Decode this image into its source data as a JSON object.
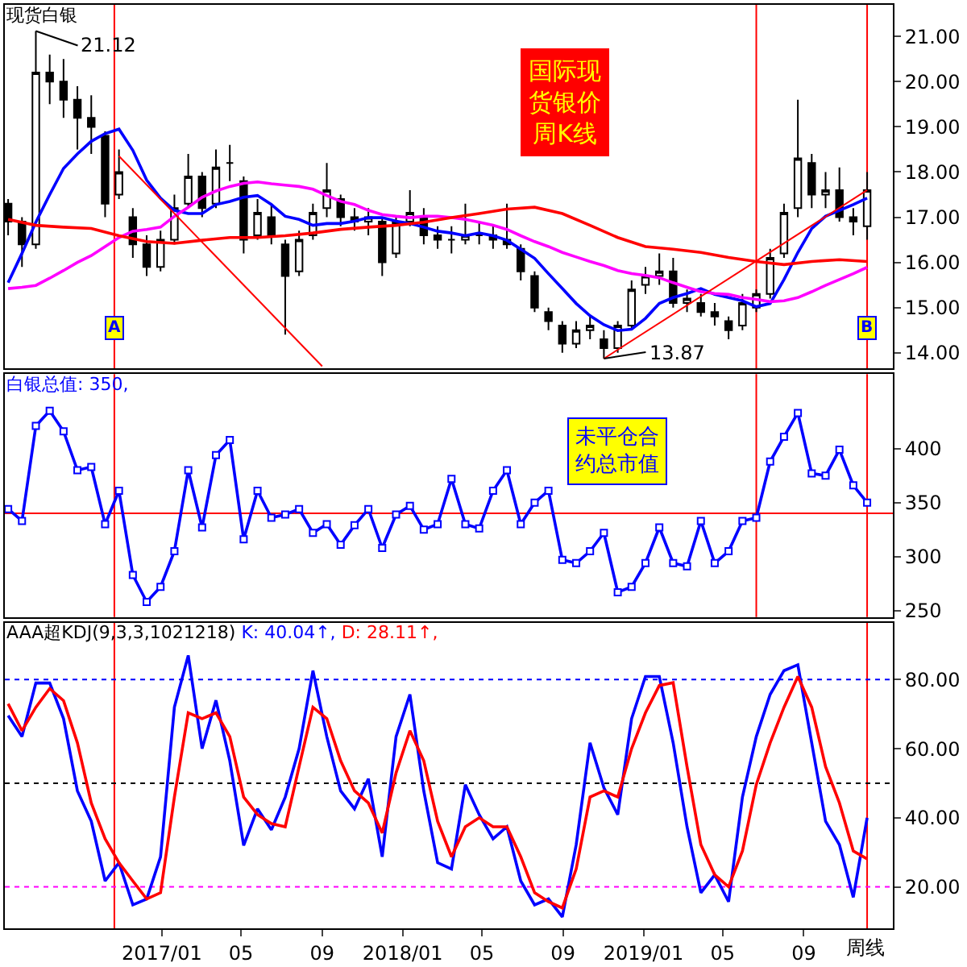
{
  "chart_data": [
    {
      "type": "candlestick",
      "title": "现货白银",
      "x": [
        "2016-05-13",
        "2016-06-03",
        "2016-06-24",
        "2016-07-15",
        "2016-08-05",
        "2016-08-26",
        "2016-09-16",
        "2016-10-07",
        "2016-10-28",
        "2016-11-18",
        "2016-12-09",
        "2016-12-30",
        "2017-01-20",
        "2017-02-10",
        "2017-03-03",
        "2017-03-24",
        "2017-04-14",
        "2017-05-05",
        "2017-05-26",
        "2017-06-16",
        "2017-07-07",
        "2017-07-28",
        "2017-08-18",
        "2017-09-08",
        "2017-09-29",
        "2017-10-20",
        "2017-11-10",
        "2017-12-01",
        "2017-12-22",
        "2018-01-12",
        "2018-02-02",
        "2018-02-23",
        "2018-03-16",
        "2018-04-06",
        "2018-04-27",
        "2018-05-18",
        "2018-06-08",
        "2018-06-29",
        "2018-07-20",
        "2018-08-10",
        "2018-08-31",
        "2018-09-21",
        "2018-10-12",
        "2018-11-02",
        "2018-11-23",
        "2018-12-14",
        "2019-01-04",
        "2019-01-25",
        "2019-02-15",
        "2019-03-08",
        "2019-03-29",
        "2019-04-19",
        "2019-05-10",
        "2019-05-31",
        "2019-06-21",
        "2019-07-12",
        "2019-08-02",
        "2019-08-23",
        "2019-09-13",
        "2019-10-04",
        "2019-10-25",
        "2019-11-15",
        "2019-12-06"
      ],
      "ohlc": [
        [
          17.3,
          17.4,
          16.6,
          16.9
        ],
        [
          16.9,
          17.0,
          15.9,
          16.4
        ],
        [
          16.4,
          21.12,
          16.3,
          20.2
        ],
        [
          20.2,
          20.6,
          19.5,
          20.0
        ],
        [
          20.0,
          20.5,
          19.2,
          19.6
        ],
        [
          19.6,
          19.9,
          18.5,
          19.2
        ],
        [
          19.2,
          19.7,
          18.4,
          19.0
        ],
        [
          18.8,
          18.9,
          17.0,
          17.3
        ],
        [
          17.5,
          18.5,
          17.4,
          18.0
        ],
        [
          17.0,
          17.2,
          16.1,
          16.4
        ],
        [
          16.4,
          16.6,
          15.7,
          15.9
        ],
        [
          15.9,
          16.7,
          15.8,
          16.5
        ],
        [
          16.5,
          17.5,
          16.4,
          17.2
        ],
        [
          17.3,
          18.4,
          17.2,
          17.9
        ],
        [
          17.9,
          18.0,
          17.0,
          17.2
        ],
        [
          17.3,
          18.5,
          17.2,
          18.1
        ],
        [
          18.2,
          18.6,
          17.8,
          18.2
        ],
        [
          17.8,
          17.9,
          16.2,
          16.5
        ],
        [
          16.6,
          17.4,
          16.5,
          17.1
        ],
        [
          17.0,
          17.3,
          16.4,
          16.6
        ],
        [
          16.4,
          16.5,
          14.4,
          15.7
        ],
        [
          15.8,
          16.7,
          15.7,
          16.5
        ],
        [
          16.6,
          17.3,
          16.5,
          17.1
        ],
        [
          17.2,
          18.2,
          17.0,
          17.6
        ],
        [
          17.4,
          17.5,
          16.8,
          17.0
        ],
        [
          17.0,
          17.2,
          16.7,
          16.9
        ],
        [
          16.9,
          17.2,
          16.6,
          17.0
        ],
        [
          16.9,
          17.0,
          15.7,
          16.0
        ],
        [
          16.2,
          17.0,
          16.1,
          16.9
        ],
        [
          16.9,
          17.6,
          16.8,
          17.1
        ],
        [
          17.0,
          17.2,
          16.4,
          16.6
        ],
        [
          16.6,
          16.8,
          16.3,
          16.5
        ],
        [
          16.5,
          16.8,
          16.2,
          16.5
        ],
        [
          16.5,
          17.3,
          16.4,
          16.6
        ],
        [
          16.6,
          16.9,
          16.4,
          16.6
        ],
        [
          16.6,
          16.8,
          16.3,
          16.5
        ],
        [
          16.5,
          17.3,
          16.3,
          16.4
        ],
        [
          16.3,
          16.4,
          15.6,
          15.8
        ],
        [
          15.7,
          15.8,
          14.9,
          15.0
        ],
        [
          14.9,
          15.0,
          14.5,
          14.7
        ],
        [
          14.6,
          14.7,
          14.0,
          14.2
        ],
        [
          14.2,
          14.7,
          14.1,
          14.5
        ],
        [
          14.5,
          14.8,
          14.3,
          14.6
        ],
        [
          14.3,
          14.5,
          13.87,
          14.1
        ],
        [
          14.1,
          14.7,
          14.0,
          14.6
        ],
        [
          14.6,
          15.6,
          14.5,
          15.4
        ],
        [
          15.5,
          15.9,
          15.3,
          15.7
        ],
        [
          15.7,
          16.2,
          15.5,
          15.8
        ],
        [
          15.8,
          16.1,
          15.0,
          15.1
        ],
        [
          15.1,
          15.4,
          14.9,
          15.2
        ],
        [
          15.1,
          15.3,
          14.8,
          14.9
        ],
        [
          14.9,
          15.1,
          14.6,
          14.8
        ],
        [
          14.7,
          14.8,
          14.3,
          14.5
        ],
        [
          14.6,
          15.3,
          14.5,
          15.1
        ],
        [
          15.0,
          15.4,
          14.9,
          15.3
        ],
        [
          15.3,
          16.3,
          15.2,
          16.1
        ],
        [
          16.2,
          17.3,
          16.1,
          17.1
        ],
        [
          17.2,
          19.6,
          17.0,
          18.3
        ],
        [
          18.2,
          18.4,
          17.2,
          17.5
        ],
        [
          17.5,
          18.0,
          17.2,
          17.6
        ],
        [
          17.6,
          18.1,
          16.9,
          17.0
        ],
        [
          17.0,
          17.2,
          16.6,
          16.9
        ],
        [
          16.8,
          18.0,
          16.5,
          17.6
        ]
      ],
      "series": [
        {
          "type": "line",
          "color": "#0000ff",
          "values": [
            15.55,
            16.2,
            16.89,
            17.5,
            18.08,
            18.4,
            18.68,
            18.85,
            18.95,
            18.48,
            17.82,
            17.42,
            17.15,
            17.08,
            17.08,
            17.28,
            17.35,
            17.44,
            17.48,
            17.28,
            17.02,
            16.95,
            16.82,
            16.86,
            16.86,
            16.91,
            16.99,
            16.99,
            16.91,
            16.86,
            16.78,
            16.69,
            16.65,
            16.59,
            16.65,
            16.59,
            16.49,
            16.29,
            16.09,
            15.75,
            15.42,
            15.09,
            14.82,
            14.62,
            14.49,
            14.52,
            14.76,
            15.09,
            15.22,
            15.31,
            15.42,
            15.29,
            15.22,
            15.15,
            15.02,
            15.09,
            15.62,
            16.22,
            16.75,
            17.02,
            17.15,
            17.28,
            17.42
          ]
        },
        {
          "type": "line",
          "color": "#ff00ff",
          "values": [
            15.42,
            15.45,
            15.49,
            15.65,
            15.82,
            16.0,
            16.15,
            16.35,
            16.55,
            16.69,
            16.73,
            16.78,
            17.02,
            17.22,
            17.44,
            17.58,
            17.68,
            17.75,
            17.78,
            17.74,
            17.71,
            17.68,
            17.62,
            17.48,
            17.35,
            17.28,
            17.15,
            17.06,
            17.02,
            16.99,
            17.02,
            17.02,
            16.99,
            16.95,
            16.89,
            16.82,
            16.73,
            16.59,
            16.46,
            16.35,
            16.22,
            16.12,
            16.02,
            15.93,
            15.82,
            15.75,
            15.71,
            15.66,
            15.55,
            15.45,
            15.35,
            15.31,
            15.29,
            15.22,
            15.18,
            15.13,
            15.15,
            15.22,
            15.35,
            15.49,
            15.62,
            15.75,
            15.89
          ]
        },
        {
          "type": "line",
          "color": "#ff0000",
          "x": [
            "2016-05-13",
            "2016-06-24",
            "2016-08-05",
            "2016-09-16",
            "2016-10-28",
            "2016-12-09",
            "2017-01-20",
            "2017-03-03",
            "2017-04-14",
            "2017-05-26",
            "2017-07-07",
            "2017-08-18",
            "2017-09-29",
            "2017-11-10",
            "2017-12-22",
            "2018-02-02",
            "2018-03-16",
            "2018-04-27",
            "2018-06-08",
            "2018-07-20",
            "2018-08-31",
            "2018-10-12",
            "2018-11-23",
            "2019-01-04",
            "2019-02-15",
            "2019-03-29",
            "2019-05-10",
            "2019-06-21",
            "2019-08-02",
            "2019-09-13",
            "2019-10-25",
            "2019-12-06"
          ],
          "values": [
            16.95,
            16.82,
            16.78,
            16.75,
            16.59,
            16.46,
            16.42,
            16.49,
            16.55,
            16.55,
            16.59,
            16.65,
            16.73,
            16.78,
            16.82,
            16.89,
            16.99,
            17.08,
            17.18,
            17.22,
            17.08,
            16.82,
            16.55,
            16.35,
            16.29,
            16.22,
            16.11,
            16.02,
            15.95,
            16.02,
            16.06,
            16.02
          ]
        },
        {
          "type": "line",
          "color": "#ff0000",
          "x": [
            "2016-10-28",
            "2017-09-01"
          ],
          "values": [
            18.35,
            13.7
          ]
        },
        {
          "type": "line",
          "color": "#ff0000",
          "x": [
            "2018-11-02",
            "2019-12-06"
          ],
          "values": [
            13.87,
            17.6
          ]
        }
      ],
      "annotations": [
        {
          "text": "21.12",
          "x": "2016-06-24",
          "y": 21.12
        },
        {
          "text": "13.87",
          "x": "2018-11-02",
          "y": 13.87
        },
        "国际现货银价周K线"
      ],
      "ref_lines": [
        {
          "axis": "x",
          "value": "2016-10-21",
          "label": "A",
          "color": "#ff0000"
        },
        {
          "axis": "x",
          "value": "2019-12-06",
          "label": "B",
          "color": "#ff0000"
        },
        {
          "axis": "x",
          "value": "2019-06-21",
          "color": "#ff0000"
        }
      ],
      "xlim": [
        "2016-05-08",
        "2020-01-14"
      ],
      "ylim": [
        13.65,
        21.7
      ],
      "yticks": [
        {
          "value": 14,
          "label": "14.00"
        },
        {
          "value": 15,
          "label": "15.00"
        },
        {
          "value": 16,
          "label": "16.00"
        },
        {
          "value": 17,
          "label": "17.00"
        },
        {
          "value": 18,
          "label": "18.00"
        },
        {
          "value": 19,
          "label": "19.00"
        },
        {
          "value": 20,
          "label": "20.00"
        },
        {
          "value": 21,
          "label": "21.00"
        }
      ],
      "tick_labels": "y"
    },
    {
      "type": "line",
      "x": [
        "2016-05-13",
        "2016-06-03",
        "2016-06-24",
        "2016-07-15",
        "2016-08-05",
        "2016-08-26",
        "2016-09-16",
        "2016-10-07",
        "2016-10-28",
        "2016-11-18",
        "2016-12-09",
        "2016-12-30",
        "2017-01-20",
        "2017-02-10",
        "2017-03-03",
        "2017-03-24",
        "2017-04-14",
        "2017-05-05",
        "2017-05-26",
        "2017-06-16",
        "2017-07-07",
        "2017-07-28",
        "2017-08-18",
        "2017-09-08",
        "2017-09-29",
        "2017-10-20",
        "2017-11-10",
        "2017-12-01",
        "2017-12-22",
        "2018-01-12",
        "2018-02-02",
        "2018-02-23",
        "2018-03-16",
        "2018-04-06",
        "2018-04-27",
        "2018-05-18",
        "2018-06-08",
        "2018-06-29",
        "2018-07-20",
        "2018-08-10",
        "2018-08-31",
        "2018-09-21",
        "2018-10-12",
        "2018-11-02",
        "2018-11-23",
        "2018-12-14",
        "2019-01-04",
        "2019-01-25",
        "2019-02-15",
        "2019-03-08",
        "2019-03-29",
        "2019-04-19",
        "2019-05-10",
        "2019-05-31",
        "2019-06-21",
        "2019-07-12",
        "2019-08-02",
        "2019-08-23",
        "2019-09-13",
        "2019-10-04",
        "2019-10-25",
        "2019-11-15",
        "2019-12-06"
      ],
      "series": [
        {
          "name": "白银总值: 350,",
          "color": "#0000ff",
          "values": [
            344,
            333,
            421,
            435,
            416,
            380,
            383,
            330,
            361,
            283,
            258,
            272,
            305,
            380,
            327,
            394,
            408,
            316,
            361,
            336,
            339,
            344,
            322,
            330,
            311,
            329,
            344,
            308,
            339,
            347,
            325,
            330,
            372,
            330,
            326,
            361,
            380,
            330,
            350,
            361,
            297,
            294,
            305,
            322,
            267,
            272,
            294,
            327,
            294,
            291,
            333,
            294,
            305,
            333,
            336,
            388,
            411,
            433,
            377,
            375,
            399,
            366,
            350
          ]
        }
      ],
      "annotations": [
        "未平仓合约总市值"
      ],
      "ref_lines": [
        {
          "axis": "x",
          "value": "2016-10-21",
          "color": "#ff0000"
        },
        {
          "axis": "x",
          "value": "2019-12-06",
          "color": "#ff0000"
        },
        {
          "axis": "x",
          "value": "2019-06-21",
          "color": "#ff0000"
        },
        {
          "axis": "y",
          "value": 340,
          "color": "#ff0000"
        }
      ],
      "xlim": [
        "2016-05-08",
        "2020-01-14"
      ],
      "ylim": [
        244,
        469
      ],
      "yticks": [
        250,
        300,
        350,
        400
      ],
      "marker": "square",
      "tick_labels": "y"
    },
    {
      "type": "line",
      "title": "AAA超KDJ(9,3,3,1021218)",
      "x": [
        "2016-05-13",
        "2016-06-03",
        "2016-06-24",
        "2016-07-15",
        "2016-08-05",
        "2016-08-26",
        "2016-09-16",
        "2016-10-07",
        "2016-10-28",
        "2016-11-18",
        "2016-12-09",
        "2016-12-30",
        "2017-01-20",
        "2017-02-10",
        "2017-03-03",
        "2017-03-24",
        "2017-04-14",
        "2017-05-05",
        "2017-05-26",
        "2017-06-16",
        "2017-07-07",
        "2017-07-28",
        "2017-08-18",
        "2017-09-08",
        "2017-09-29",
        "2017-10-20",
        "2017-11-10",
        "2017-12-01",
        "2017-12-22",
        "2018-01-12",
        "2018-02-02",
        "2018-02-23",
        "2018-03-16",
        "2018-04-06",
        "2018-04-27",
        "2018-05-18",
        "2018-06-08",
        "2018-06-29",
        "2018-07-20",
        "2018-08-10",
        "2018-08-31",
        "2018-09-21",
        "2018-10-12",
        "2018-11-02",
        "2018-11-23",
        "2018-12-14",
        "2019-01-04",
        "2019-01-25",
        "2019-02-15",
        "2019-03-08",
        "2019-03-29",
        "2019-04-19",
        "2019-05-10",
        "2019-05-31",
        "2019-06-21",
        "2019-07-12",
        "2019-08-02",
        "2019-08-23",
        "2019-09-13",
        "2019-10-04",
        "2019-10-25",
        "2019-11-15",
        "2019-12-06"
      ],
      "series": [
        {
          "name": "K: 40.04↑,",
          "color": "#0000ff",
          "values": [
            69.6,
            63.5,
            79,
            79,
            68.7,
            47.8,
            39,
            21.7,
            27,
            14.8,
            16.5,
            28.7,
            72,
            87,
            60,
            74,
            56.5,
            32,
            42.6,
            36.5,
            46,
            60,
            82.6,
            63.5,
            47.8,
            42.6,
            51.3,
            28.7,
            63.5,
            75.7,
            47.8,
            27,
            25.2,
            49.6,
            40.9,
            33.9,
            37.4,
            21.7,
            14.8,
            16.5,
            11.3,
            32.2,
            61.7,
            48.7,
            40.9,
            68.7,
            80.9,
            80.9,
            61.7,
            37.4,
            18.3,
            23.5,
            15.7,
            46,
            63.5,
            75.7,
            82.6,
            84.3,
            61.7,
            39,
            32.2,
            17,
            40.0
          ]
        },
        {
          "name": "D: 28.11↑,",
          "color": "#ff0000",
          "values": [
            73,
            65.2,
            72,
            77.4,
            73.9,
            61.7,
            44.3,
            33.9,
            27,
            21.7,
            16.5,
            18.3,
            46,
            70.4,
            68.7,
            70.4,
            63.5,
            46,
            40.9,
            38.3,
            37.4,
            54.8,
            72,
            68.7,
            56.5,
            47.8,
            44.3,
            35.6,
            53,
            65.2,
            56.5,
            39,
            28.7,
            37.4,
            40,
            37.4,
            37.4,
            28.7,
            18.3,
            15.7,
            13.9,
            25.2,
            46,
            47.8,
            46,
            60,
            70.4,
            78.3,
            79.1,
            54.8,
            32.2,
            23.5,
            20,
            30.4,
            49.6,
            61.7,
            72,
            80.9,
            72,
            54.8,
            44.3,
            30.4,
            28.1
          ]
        }
      ],
      "annotations": [
        "周线"
      ],
      "ref_lines": [
        {
          "axis": "x",
          "value": "2016-10-21",
          "color": "#ff0000"
        },
        {
          "axis": "x",
          "value": "2019-12-06",
          "color": "#ff0000"
        },
        {
          "axis": "y",
          "value": 80,
          "color": "#0000ff",
          "line_style": "dotted"
        },
        {
          "axis": "y",
          "value": 50,
          "color": "#000000",
          "line_style": "dotted"
        },
        {
          "axis": "y",
          "value": 20,
          "color": "#ff00ff",
          "line_style": "dotted"
        }
      ],
      "xlim": [
        "2016-05-08",
        "2020-01-14"
      ],
      "ylim": [
        8,
        96.5
      ],
      "xticks": [
        {
          "value": "2017-01-01",
          "label": "2017/01"
        },
        {
          "value": "2017-05-01",
          "label": "05"
        },
        {
          "value": "2017-09-01",
          "label": "09"
        },
        {
          "value": "2018-01-01",
          "label": "2018/01"
        },
        {
          "value": "2018-05-01",
          "label": "05"
        },
        {
          "value": "2018-09-01",
          "label": "09"
        },
        {
          "value": "2019-01-01",
          "label": "2019/01"
        },
        {
          "value": "2019-05-01",
          "label": "05"
        },
        {
          "value": "2019-09-01",
          "label": "09"
        }
      ],
      "yticks": [
        {
          "value": 20,
          "label": "20.00"
        },
        {
          "value": 40,
          "label": "40.00"
        },
        {
          "value": 60,
          "label": "60.00"
        },
        {
          "value": 80,
          "label": "80.00"
        }
      ]
    }
  ]
}
